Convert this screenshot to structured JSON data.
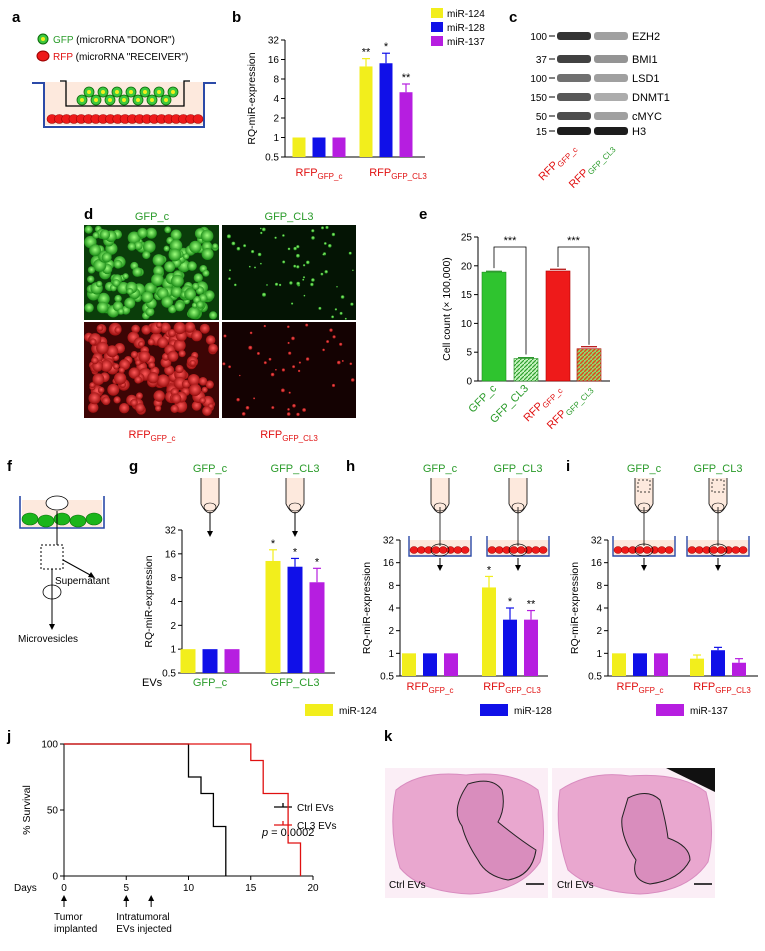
{
  "colors": {
    "yellow": "#f2ee1c",
    "blue": "#1010e8",
    "purple": "#b61ee0",
    "green_text": "#2a9b2a",
    "red_text": "#e01010",
    "bar_green": "#2fc42f",
    "bar_red": "#ee1a1a"
  },
  "panel_letters": {
    "a": "a",
    "b": "b",
    "c": "c",
    "d": "d",
    "e": "e",
    "f": "f",
    "g": "g",
    "h": "h",
    "i": "i",
    "j": "j",
    "k": "k"
  },
  "panel_a": {
    "gfp_prefix": "GFP",
    "gfp_suffix": "(microRNA \"DONOR\")",
    "rfp_prefix": "RFP",
    "rfp_suffix": "(microRNA \"RECEIVER\")"
  },
  "mirna_legend": [
    "miR-124",
    "miR-128",
    "miR-137"
  ],
  "rq_ylabel": "RQ-miR-expression",
  "rfp_main": "RFP",
  "sub_gfp_c": "GFP_c",
  "sub_gfp_cl3": "GFP_CL3",
  "label_gfp_c": "GFP_c",
  "label_gfp_cl3": "GFP_CL3",
  "label_evs": "EVs",
  "panel_c": {
    "proteins": [
      "EZH2",
      "BMI1",
      "LSD1",
      "DNMT1",
      "cMYC",
      "H3"
    ],
    "mw": [
      "100",
      "37",
      "100",
      "150",
      "50",
      "15"
    ]
  },
  "panel_f": {
    "supernatant": "Supernatant",
    "microvesicles": "Microvesicles"
  },
  "chart_data": [
    {
      "panel": "b",
      "type": "bar",
      "categories": [
        "RFP GFP_c",
        "RFP GFP_CL3"
      ],
      "series": [
        {
          "name": "miR-124",
          "values": [
            1,
            12.5
          ],
          "err": [
            0,
            4
          ]
        },
        {
          "name": "miR-128",
          "values": [
            1,
            14
          ],
          "err": [
            0,
            6
          ]
        },
        {
          "name": "miR-137",
          "values": [
            1,
            5
          ],
          "err": [
            0,
            1.7
          ]
        }
      ],
      "significance": [
        [
          "",
          "",
          ""
        ],
        [
          "**",
          "*",
          "**"
        ]
      ],
      "yscale": "log2",
      "ylim": [
        0.5,
        32
      ],
      "yticks": [
        "0.5",
        "1",
        "2",
        "4",
        "8",
        "16",
        "32"
      ],
      "ylabel": "RQ-miR-expression",
      "legend": "top-right"
    },
    {
      "panel": "e",
      "type": "bar",
      "categories": [
        "GFP_c",
        "GFP_CL3",
        "RFP GFP_c",
        "RFP GFP_CL3"
      ],
      "values": [
        18.9,
        3.9,
        19.1,
        5.6
      ],
      "err": [
        0.15,
        0.15,
        0.3,
        0.35
      ],
      "ylim": [
        0,
        25
      ],
      "yticks": [
        "0",
        "5",
        "10",
        "15",
        "20",
        "25"
      ],
      "ylabel": "Cell count (× 100,000)",
      "significance": [
        "***",
        "***"
      ]
    },
    {
      "panel": "g",
      "type": "bar",
      "categories": [
        "GFP_c",
        "GFP_CL3"
      ],
      "series": [
        {
          "name": "miR-124",
          "values": [
            1,
            13
          ],
          "err": [
            0,
            5
          ]
        },
        {
          "name": "miR-128",
          "values": [
            1,
            11
          ],
          "err": [
            0,
            3
          ]
        },
        {
          "name": "miR-137",
          "values": [
            1,
            7
          ],
          "err": [
            0,
            3.5
          ]
        }
      ],
      "significance": [
        [
          "",
          "",
          ""
        ],
        [
          "*",
          "*",
          "*"
        ]
      ],
      "yscale": "log2",
      "ylim": [
        0.5,
        32
      ],
      "yticks": [
        "0.5",
        "1",
        "2",
        "4",
        "8",
        "16",
        "32"
      ],
      "ylabel": "RQ-miR-expression"
    },
    {
      "panel": "h",
      "type": "bar",
      "categories": [
        "RFP GFP_c",
        "RFP GFP_CL3"
      ],
      "series": [
        {
          "name": "miR-124",
          "values": [
            1,
            7.5
          ],
          "err": [
            0,
            3
          ]
        },
        {
          "name": "miR-128",
          "values": [
            1,
            2.8
          ],
          "err": [
            0,
            1.2
          ]
        },
        {
          "name": "miR-137",
          "values": [
            1,
            2.8
          ],
          "err": [
            0,
            0.9
          ]
        }
      ],
      "significance": [
        [
          "",
          "",
          ""
        ],
        [
          "*",
          "*",
          "**"
        ]
      ],
      "yscale": "log2",
      "ylim": [
        0.5,
        32
      ],
      "yticks": [
        "0.5",
        "1",
        "2",
        "4",
        "8",
        "16",
        "32"
      ],
      "ylabel": "RQ-miR-expression"
    },
    {
      "panel": "i",
      "type": "bar",
      "categories": [
        "RFP GFP_c",
        "RFP GFP_CL3"
      ],
      "series": [
        {
          "name": "miR-124",
          "values": [
            1,
            0.85
          ],
          "err": [
            0,
            0.1
          ]
        },
        {
          "name": "miR-128",
          "values": [
            1,
            1.1
          ],
          "err": [
            0,
            0.1
          ]
        },
        {
          "name": "miR-137",
          "values": [
            1,
            0.75
          ],
          "err": [
            0,
            0.1
          ]
        }
      ],
      "significance": [
        [
          "",
          "",
          ""
        ],
        [
          "",
          "",
          ""
        ]
      ],
      "yscale": "log2",
      "ylim": [
        0.5,
        32
      ],
      "yticks": [
        "0.5",
        "1",
        "2",
        "4",
        "8",
        "16",
        "32"
      ],
      "ylabel": "RQ-miR-expression"
    },
    {
      "panel": "j",
      "type": "line",
      "ylabel": "% Survival",
      "xlabel": "Days",
      "xlim": [
        0,
        20
      ],
      "ylim": [
        0,
        100
      ],
      "xticks": [
        "0",
        "5",
        "10",
        "15",
        "20"
      ],
      "yticks": [
        "0",
        "50",
        "100"
      ],
      "series": [
        {
          "name": "Ctrl EVs",
          "color": "#000000",
          "steps": [
            [
              0,
              100
            ],
            [
              10,
              100
            ],
            [
              10,
              75
            ],
            [
              11,
              75
            ],
            [
              11,
              62.5
            ],
            [
              12,
              62.5
            ],
            [
              12,
              37.5
            ],
            [
              13,
              37.5
            ],
            [
              13,
              0
            ]
          ]
        },
        {
          "name": "CL3 EVs",
          "color": "#e01010",
          "steps": [
            [
              0,
              100
            ],
            [
              15,
              100
            ],
            [
              15,
              87.5
            ],
            [
              16,
              87.5
            ],
            [
              16,
              62.5
            ],
            [
              18,
              62.5
            ],
            [
              18,
              25
            ],
            [
              19,
              25
            ],
            [
              19,
              0
            ]
          ]
        }
      ],
      "pvalue_label": "p",
      "pvalue_text": "= 0.0002",
      "annotations": [
        {
          "day": 0,
          "label": "Tumor implanted"
        },
        {
          "day": 5,
          "label": "Intratumoral EVs injected"
        },
        {
          "day": 7,
          "label": ""
        }
      ]
    }
  ],
  "panel_k": {
    "labels": [
      "Ctrl EVs",
      "Ctrl EVs"
    ]
  }
}
